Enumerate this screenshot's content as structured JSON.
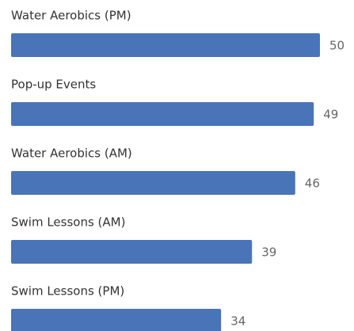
{
  "chart_data": {
    "type": "bar",
    "orientation": "horizontal",
    "categories": [
      "Water Aerobics (PM)",
      "Pop-up Events",
      "Water Aerobics (AM)",
      "Swim Lessons (AM)",
      "Swim Lessons (PM)"
    ],
    "values": [
      50,
      49,
      46,
      39,
      34
    ],
    "color": "#4a74b8"
  }
}
